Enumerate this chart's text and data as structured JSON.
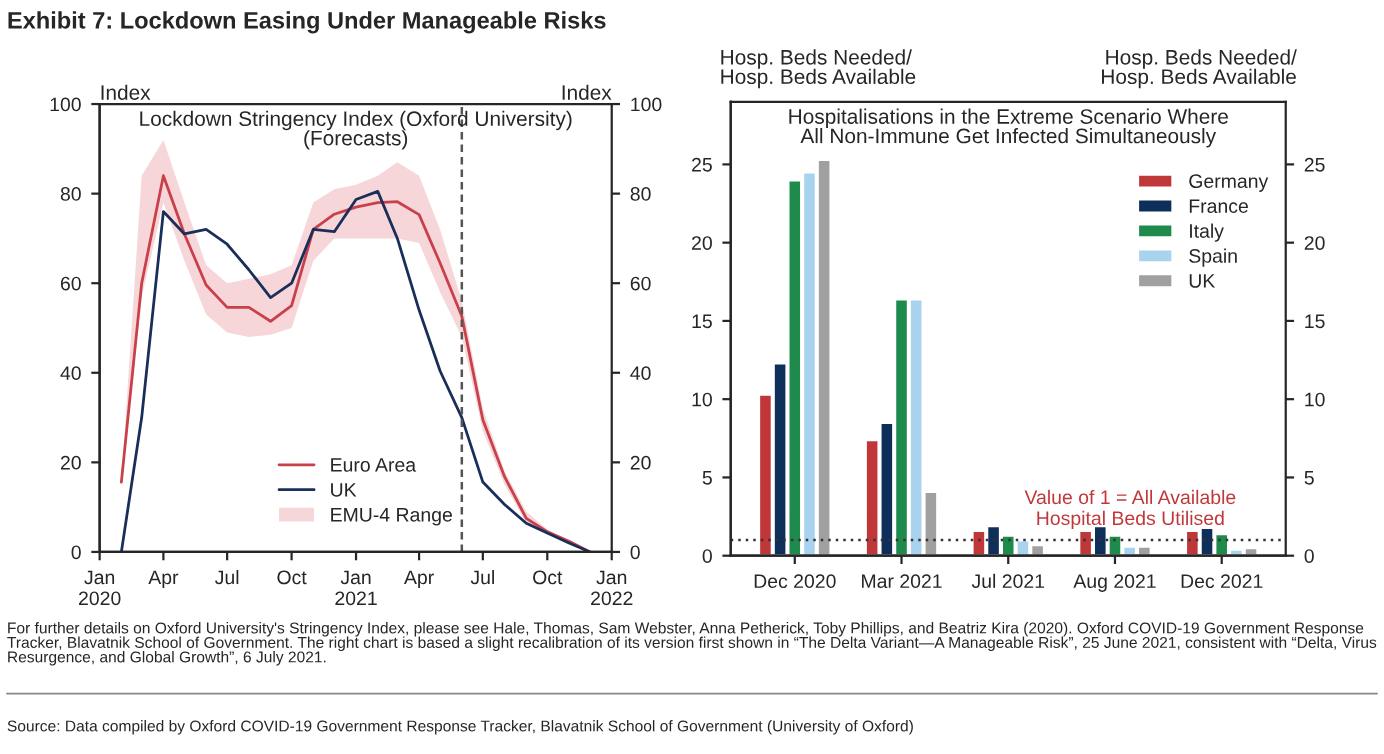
{
  "chart_data": [
    {
      "type": "line",
      "title": "Exhibit 7: Lockdown Easing Under Manageable Risks",
      "subtitle": "Lockdown Stringency Index (Oxford University)\n(Forecasts)",
      "ylabel": "Index",
      "y2label": "Index",
      "x": [
        "2020-02",
        "2020-03",
        "2020-04",
        "2020-05",
        "2020-06",
        "2020-07",
        "2020-08",
        "2020-09",
        "2020-10",
        "2020-11",
        "2020-12",
        "2021-01",
        "2021-02",
        "2021-03",
        "2021-04",
        "2021-05",
        "2021-06",
        "2021-07",
        "2021-08",
        "2021-09",
        "2021-10",
        "2021-11",
        "2021-12"
      ],
      "series": [
        {
          "name": "EMU-4 Range",
          "type": "area",
          "color": "#f7d6d9",
          "values": [
            null,
            null,
            null,
            null,
            null,
            null,
            null,
            null,
            null,
            null,
            null,
            null,
            null,
            null,
            null,
            null,
            null,
            null,
            null,
            null,
            null,
            null,
            null
          ],
          "lower": [
            15.6,
            57,
            78,
            65,
            53,
            49,
            48,
            48.5,
            50,
            65,
            70,
            70,
            70,
            70,
            69,
            58,
            48,
            27,
            15,
            6.5,
            4,
            2,
            0
          ],
          "upper": [
            15.6,
            84,
            92,
            78,
            64,
            60,
            61,
            62,
            64,
            78,
            81,
            82,
            84,
            87,
            84,
            72,
            56,
            32,
            18,
            9,
            5,
            2.5,
            0
          ]
        },
        {
          "name": "Euro Area",
          "type": "line",
          "color": "#c8414a",
          "values": [
            15.6,
            60,
            84,
            71,
            59.6,
            54.6,
            54.6,
            51.5,
            55,
            72,
            75.4,
            77,
            78,
            78.2,
            75.3,
            64.5,
            52.6,
            29.5,
            16.8,
            7.5,
            4.5,
            2.4,
            0
          ]
        },
        {
          "name": "UK",
          "type": "line",
          "color": "#1a2e5a",
          "values": [
            0,
            30,
            76,
            71,
            72,
            68.7,
            63,
            56.8,
            60,
            72,
            71.5,
            78.7,
            80.5,
            70,
            54,
            40.4,
            30,
            15.6,
            10.6,
            6.4,
            4.2,
            2,
            0
          ]
        }
      ],
      "xlim": [
        "2020-01",
        "2022-01"
      ],
      "xticks": [
        {
          "value": "2020-01",
          "label": "Jan\n2020"
        },
        {
          "value": "2020-04",
          "label": "Apr"
        },
        {
          "value": "2020-07",
          "label": "Jul"
        },
        {
          "value": "2020-10",
          "label": "Oct"
        },
        {
          "value": "2021-01",
          "label": "Jan\n2021"
        },
        {
          "value": "2021-04",
          "label": "Apr"
        },
        {
          "value": "2021-07",
          "label": "Jul"
        },
        {
          "value": "2021-10",
          "label": "Oct"
        },
        {
          "value": "2022-01",
          "label": "Jan\n2022"
        }
      ],
      "ylim": [
        0,
        100
      ],
      "yticks": [
        0,
        20,
        40,
        60,
        80,
        100
      ],
      "y2lim": [
        0,
        100
      ],
      "y2ticks": [
        0,
        20,
        40,
        60,
        80,
        100
      ],
      "ref_lines": [
        {
          "axis": "x",
          "value": "2021-06",
          "color": "#555555",
          "line_style": "dashed"
        }
      ],
      "legend": "bottom",
      "grid": false,
      "annotations": [
        "For further details on Oxford University's Stringency Index, please see Hale, Thomas, Sam Webster, Anna Petherick, Toby Phillips, and Beatriz Kira (2020). Oxford COVID-19 Government Response Tracker, Blavatnik School of Government. The right chart is based a slight recalibration of its version first shown in “The Delta Variant—A Manageable Risk”, 25 June 2021, consistent with “Delta, Virus Resurgence, and Global Growth”, 6 July 2021.",
        "Source: Data compiled by Oxford COVID-19 Government Response Tracker, Blavatnik School of Government (University of Oxford)"
      ]
    },
    {
      "type": "bar",
      "title": "Hospitalisations in the Extreme Scenario Where\nAll Non-Immune Get Infected Simultaneously",
      "ylabel": "Hosp. Beds Needed/\nHosp. Beds Available",
      "y2label": "Hosp. Beds Needed/\nHosp. Beds Available",
      "categories": [
        "Dec 2020",
        "Mar 2021",
        "Jul 2021",
        "Aug 2021",
        "Dec 2021"
      ],
      "series": [
        {
          "name": "Germany",
          "color": "#c0373a",
          "values": [
            10.3,
            7.4,
            1.6,
            1.6,
            1.6
          ]
        },
        {
          "name": "France",
          "color": "#0d2f5a",
          "values": [
            12.3,
            8.5,
            1.9,
            1.9,
            1.8
          ]
        },
        {
          "name": "Italy",
          "color": "#1e8a4c",
          "values": [
            24.0,
            16.4,
            1.3,
            1.3,
            1.4
          ]
        },
        {
          "name": "Spain",
          "color": "#a9d2ee",
          "values": [
            24.5,
            16.4,
            1.0,
            0.6,
            0.4
          ]
        },
        {
          "name": "UK",
          "color": "#a0a0a0",
          "values": [
            25.3,
            4.1,
            0.7,
            0.6,
            0.5
          ]
        }
      ],
      "ylim": [
        0,
        29
      ],
      "yticks": [
        0,
        5,
        10,
        15,
        20,
        25
      ],
      "y2lim": [
        0,
        29
      ],
      "y2ticks": [
        0,
        5,
        10,
        15,
        20,
        25
      ],
      "ref_lines": [
        {
          "axis": "y",
          "value": 1,
          "label": "Value of 1 = All Available\nHospital Beds Utilised",
          "color": "#333333",
          "line_style": "dotted"
        }
      ],
      "legend": "top right",
      "grid": false
    }
  ]
}
